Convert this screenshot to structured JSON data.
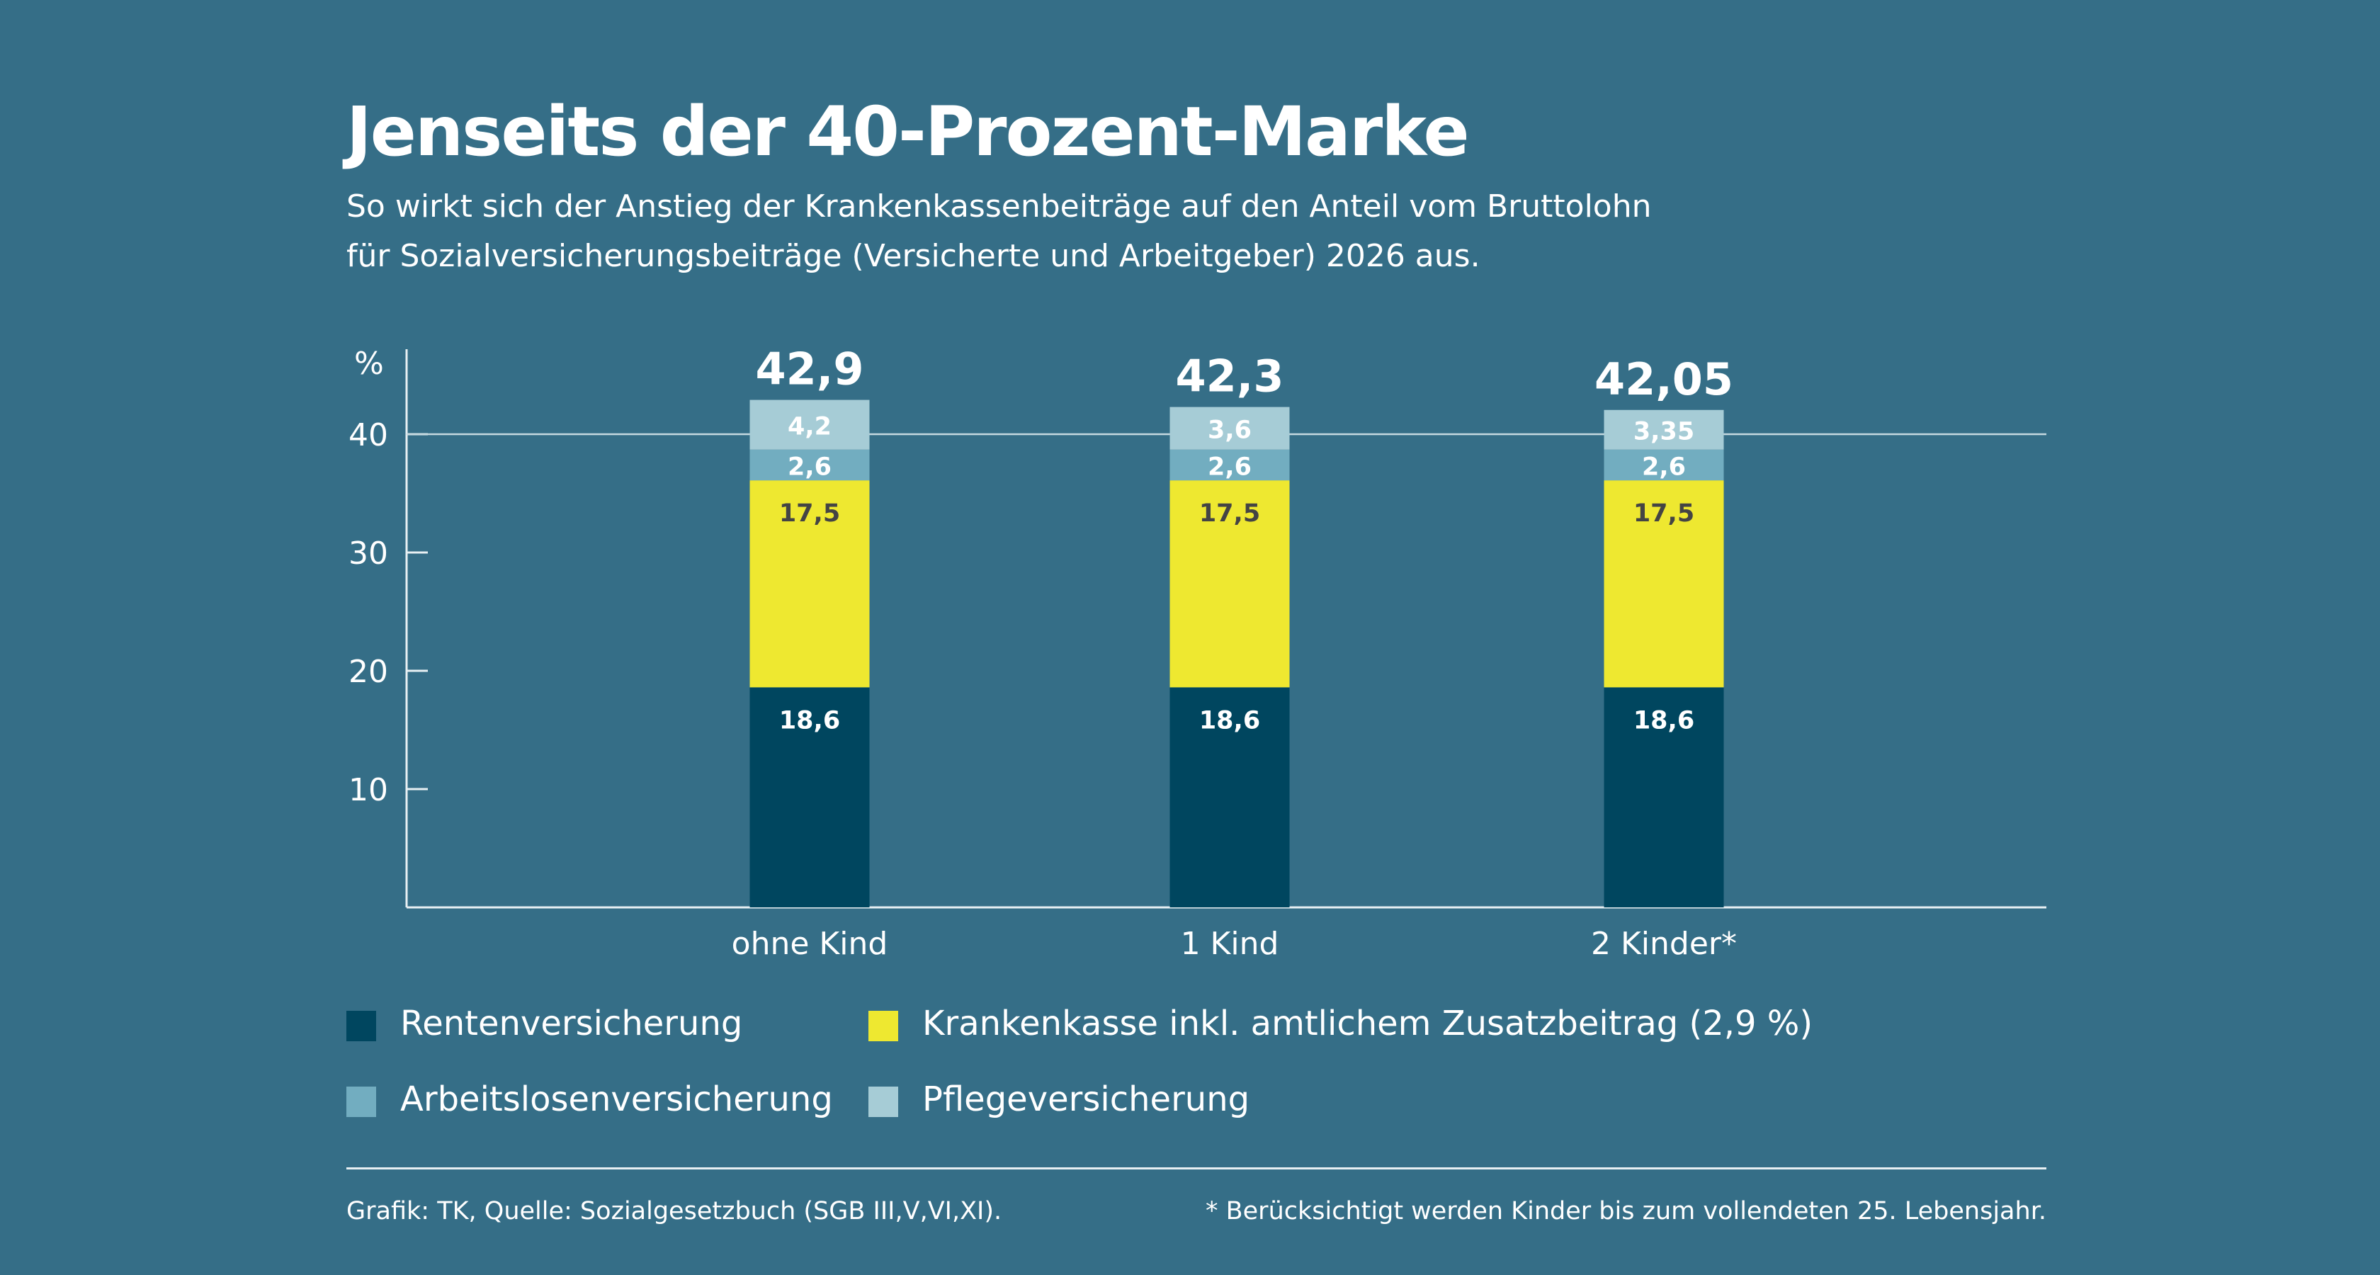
{
  "header": {
    "title": "Jenseits der 40-Prozent-Marke",
    "subtitle_line1": "So wirkt sich der Anstieg der Krankenkassenbeiträge auf den Anteil vom Bruttolohn",
    "subtitle_line2": "für Sozialversicherungsbeiträge (Versicherte und Arbeitgeber) 2026 aus."
  },
  "chart_data": {
    "type": "bar",
    "stacked": true,
    "title": "Jenseits der 40-Prozent-Marke",
    "ylabel": "%",
    "ylim": [
      0,
      45
    ],
    "yticks": [
      10,
      20,
      30,
      40
    ],
    "reference_line": 40,
    "categories": [
      "ohne Kind",
      "1 Kind",
      "2 Kinder*"
    ],
    "totals": [
      "42,9",
      "42,3",
      "42,05"
    ],
    "series": [
      {
        "name": "Rentenversicherung",
        "color": "#00465f",
        "label_color": "#ffffff",
        "values": [
          18.6,
          18.6,
          18.6
        ],
        "labels": [
          "18,6",
          "18,6",
          "18,6"
        ]
      },
      {
        "name": "Krankenkasse inkl. amtlichem Zusatzbeitrag (2,9 %)",
        "color": "#eee830",
        "label_color": "#444444",
        "values": [
          17.5,
          17.5,
          17.5
        ],
        "labels": [
          "17,5",
          "17,5",
          "17,5"
        ]
      },
      {
        "name": "Arbeitslosenversicherung",
        "color": "#72adc0",
        "label_color": "#ffffff",
        "values": [
          2.6,
          2.6,
          2.6
        ],
        "labels": [
          "2,6",
          "2,6",
          "2,6"
        ]
      },
      {
        "name": "Pflegeversicherung",
        "color": "#a6ccd6",
        "label_color": "#ffffff",
        "values": [
          4.2,
          3.6,
          3.35
        ],
        "labels": [
          "4,2",
          "3,6",
          "3,35"
        ]
      }
    ],
    "legend_position": "bottom"
  },
  "footer": {
    "source": "Grafik: TK, Quelle: Sozialgesetzbuch (SGB III,V,VI,XI).",
    "note": "* Berücksichtigt werden Kinder bis zum vollendeten 25. Lebensjahr."
  }
}
